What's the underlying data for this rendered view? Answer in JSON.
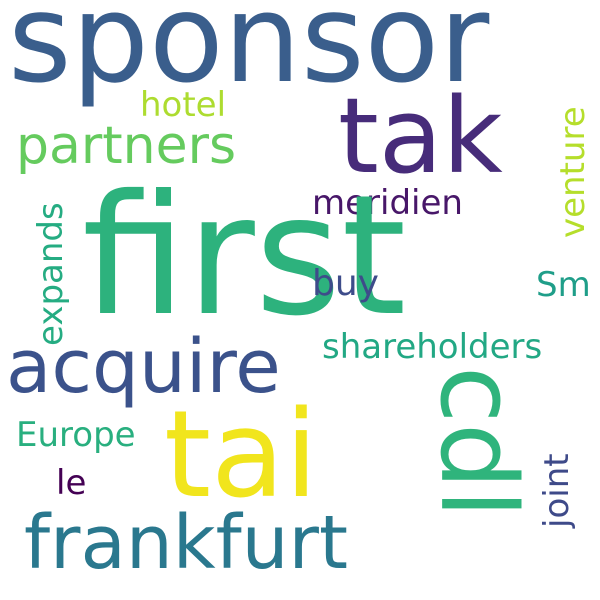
{
  "words": [
    {
      "text": "sponsor",
      "color": "#3a5e8c"
    },
    {
      "text": "tak",
      "color": "#472c7a"
    },
    {
      "text": "partners",
      "color": "#65cb5e"
    },
    {
      "text": "hotel",
      "color": "#addc30"
    },
    {
      "text": "meridien",
      "color": "#481769"
    },
    {
      "text": "first",
      "color": "#2db27d"
    },
    {
      "text": "venture",
      "color": "#b5de2b"
    },
    {
      "text": "expands",
      "color": "#25ac82"
    },
    {
      "text": "buy",
      "color": "#3e4c8a"
    },
    {
      "text": "Sm",
      "color": "#1f9e89"
    },
    {
      "text": "acquire",
      "color": "#3b528b"
    },
    {
      "text": "shareholders",
      "color": "#22a884"
    },
    {
      "text": "cdl",
      "color": "#2fb47c"
    },
    {
      "text": "Europe",
      "color": "#29af7f"
    },
    {
      "text": "tai",
      "color": "#f1e51d"
    },
    {
      "text": "le",
      "color": "#440154"
    },
    {
      "text": "joint",
      "color": "#3e4a89"
    },
    {
      "text": "frankfurt",
      "color": "#2a788e"
    }
  ]
}
